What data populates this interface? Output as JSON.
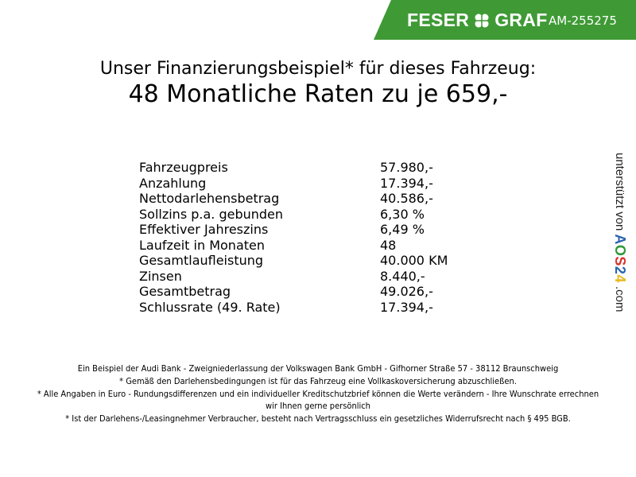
{
  "header": {
    "brand_left": "FESER",
    "brand_right": "GRAF",
    "dealer_code": "AM-255275",
    "brand_color": "#3f9a35"
  },
  "title": {
    "line1": "Unser Finanzierungsbeispiel* für dieses Fahrzeug:",
    "line2": "48 Monatliche Raten zu je 659,-"
  },
  "rows": [
    {
      "label": "Fahrzeugpreis",
      "value": "57.980,-"
    },
    {
      "label": "Anzahlung",
      "value": "17.394,-"
    },
    {
      "label": "Nettodarlehensbetrag",
      "value": "40.586,-"
    },
    {
      "label": "Sollzins p.a. gebunden",
      "value": "6,30 %"
    },
    {
      "label": "Effektiver Jahreszins",
      "value": "6,49 %"
    },
    {
      "label": "Laufzeit in Monaten",
      "value": "48"
    },
    {
      "label": "Gesamtlaufleistung",
      "value": "40.000 KM"
    },
    {
      "label": "Zinsen",
      "value": "8.440,-"
    },
    {
      "label": "Gesamtbetrag",
      "value": "49.026,-"
    },
    {
      "label": "Schlussrate (49. Rate)",
      "value": "17.394,-"
    }
  ],
  "side": {
    "text": "unterstützt von",
    "logo": "AOS24",
    "suffix": ".com"
  },
  "footer": [
    "Ein Beispiel der Audi Bank - Zweigniederlassung der Volkswagen Bank GmbH - Gifhorner Straße 57 - 38112 Braunschweig",
    "* Gemäß den Darlehensbedingungen ist für das Fahrzeug eine Vollkaskoversicherung abzuschließen.",
    "* Alle Angaben in Euro - Rundungsdifferenzen und ein individueller Kreditschutzbrief können die Werte verändern - Ihre Wunschrate errechnen wir Ihnen gerne persönlich",
    "* Ist der Darlehens-/Leasingnehmer Verbraucher, besteht nach Vertragsschluss ein gesetzliches Widerrufsrecht nach § 495 BGB."
  ]
}
